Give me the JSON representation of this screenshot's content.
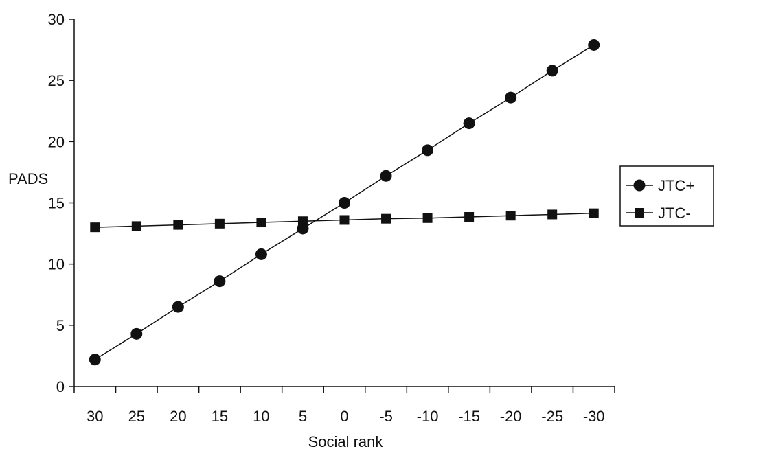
{
  "chart_data": {
    "type": "line",
    "xlabel": "Social rank",
    "ylabel": "PADS",
    "categories": [
      "30",
      "25",
      "20",
      "15",
      "10",
      "5",
      "0",
      "-5",
      "-10",
      "-15",
      "-20",
      "-25",
      "-30"
    ],
    "ylim": [
      0,
      30
    ],
    "yticks": [
      0,
      5,
      10,
      15,
      20,
      25,
      30
    ],
    "grid": false,
    "legend_position": "right",
    "series": [
      {
        "name": "JTC+",
        "marker": "circle",
        "values": [
          2.2,
          4.3,
          6.5,
          8.6,
          10.8,
          12.9,
          15.0,
          17.2,
          19.3,
          21.5,
          23.6,
          25.8,
          27.9
        ]
      },
      {
        "name": "JTC-",
        "marker": "square",
        "values": [
          13.0,
          13.1,
          13.2,
          13.3,
          13.4,
          13.5,
          13.6,
          13.7,
          13.75,
          13.85,
          13.95,
          14.05,
          14.15
        ]
      }
    ]
  }
}
